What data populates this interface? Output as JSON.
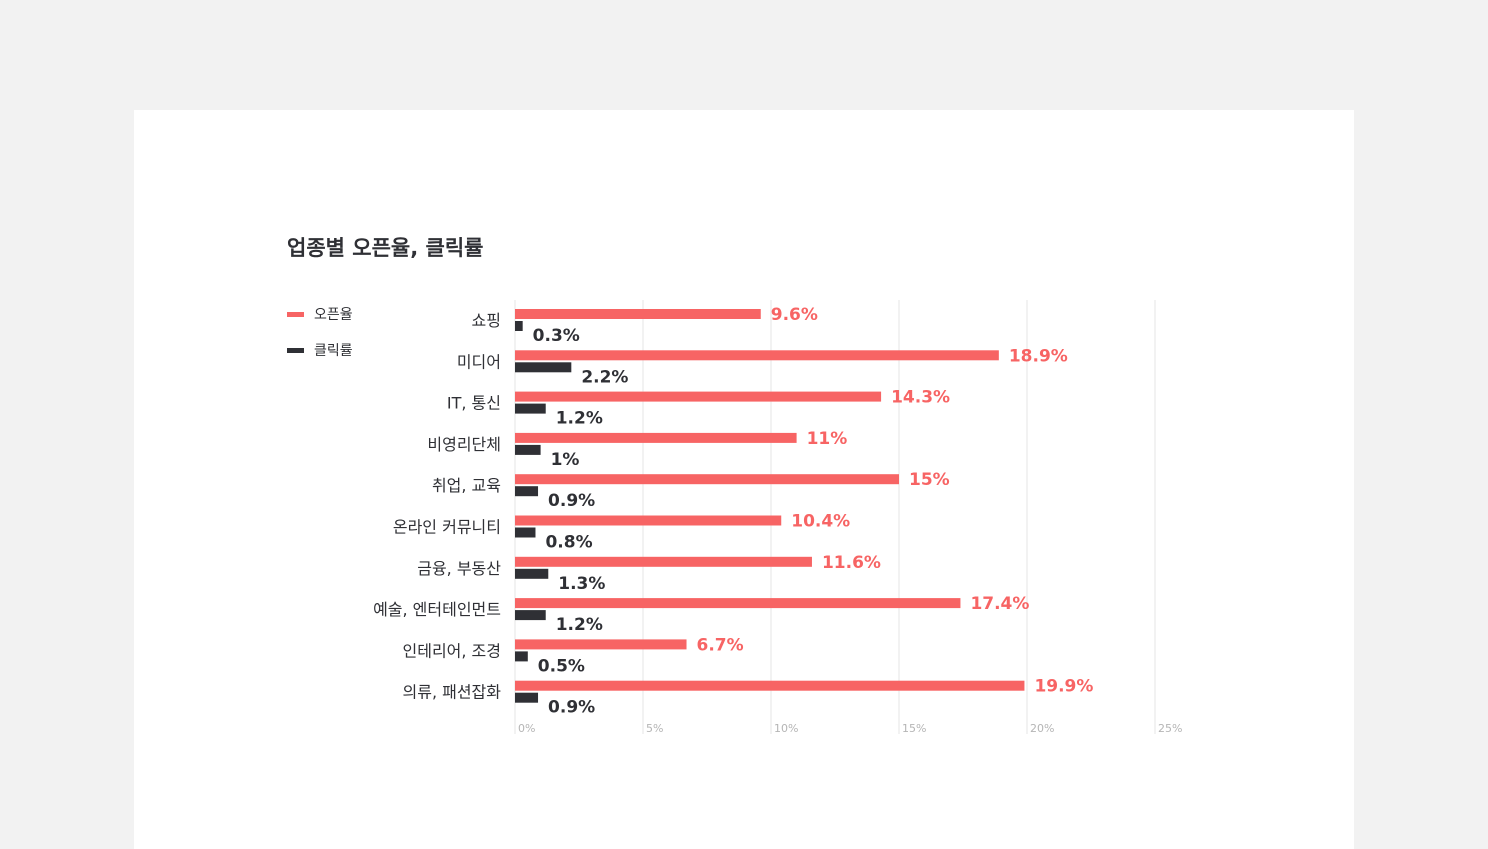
{
  "colors": {
    "page_bg": "#f2f2f2",
    "card_bg": "#ffffff",
    "open_rate": "#f76464",
    "click_rate": "#2f3035",
    "grid": "#e6e6e6",
    "tick": "#b5b5b5",
    "text": "#2f3035"
  },
  "chart_data": {
    "type": "bar",
    "orientation": "horizontal",
    "title": "업종별 오픈율, 클릭률",
    "categories": [
      "쇼핑",
      "미디어",
      "IT, 통신",
      "비영리단체",
      "취업, 교육",
      "온라인 커뮤니티",
      "금융, 부동산",
      "예술, 엔터테인먼트",
      "인테리어, 조경",
      "의류, 패션잡화"
    ],
    "series": [
      {
        "name": "오픈율",
        "color": "#f76464",
        "values": [
          9.6,
          18.9,
          14.3,
          11,
          15,
          10.4,
          11.6,
          17.4,
          6.7,
          19.9
        ],
        "labels": [
          "9.6%",
          "18.9%",
          "14.3%",
          "11%",
          "15%",
          "10.4%",
          "11.6%",
          "17.4%",
          "6.7%",
          "19.9%"
        ]
      },
      {
        "name": "클릭률",
        "color": "#2f3035",
        "values": [
          0.3,
          2.2,
          1.2,
          1,
          0.9,
          0.8,
          1.3,
          1.2,
          0.5,
          0.9
        ],
        "labels": [
          "0.3%",
          "2.2%",
          "1.2%",
          "1%",
          "0.9%",
          "0.8%",
          "1.3%",
          "1.2%",
          "0.5%",
          "0.9%"
        ]
      }
    ],
    "xlim": [
      0,
      25
    ],
    "xticks": [
      0,
      5,
      10,
      15,
      20,
      25
    ],
    "xtick_labels": [
      "0%",
      "5%",
      "10%",
      "15%",
      "20%",
      "25%"
    ],
    "grid": true,
    "legend_placement": "top-left"
  }
}
